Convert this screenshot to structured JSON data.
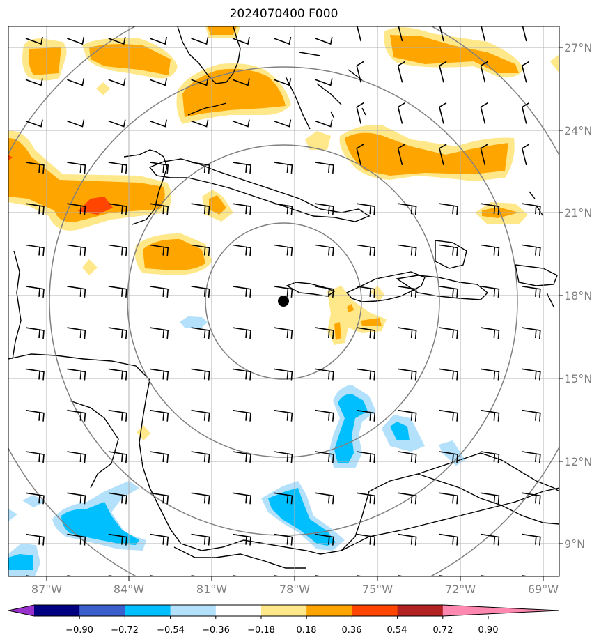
{
  "title": "2024070400 F000",
  "map": {
    "lon_labels": [
      "87°W",
      "84°W",
      "81°W",
      "78°W",
      "75°W",
      "72°W",
      "69°W"
    ],
    "lat_labels": [
      "27°N",
      "24°N",
      "21°N",
      "18°N",
      "15°N",
      "12°N",
      "9°N"
    ],
    "center_marker": {
      "lon": "77.9°W",
      "lat": "17.8°N"
    },
    "range_rings": 4,
    "field_colors": {
      "pos_036": "#ffe88a",
      "pos_054": "#ffa500",
      "pos_072": "#ff4500",
      "neg_036": "#b3e0fa",
      "neg_054": "#00bfff"
    }
  },
  "colorbar": {
    "labels": [
      "−0.90",
      "−0.72",
      "−0.54",
      "−0.36",
      "−0.18",
      "0.18",
      "0.36",
      "0.54",
      "0.72",
      "0.90"
    ],
    "colors": [
      "#9932cc",
      "#000080",
      "#3a5fcd",
      "#00bfff",
      "#b3e0fa",
      "#ffffff",
      "#ffe88a",
      "#ffa500",
      "#ff4500",
      "#b22222",
      "#ff88b0"
    ]
  }
}
